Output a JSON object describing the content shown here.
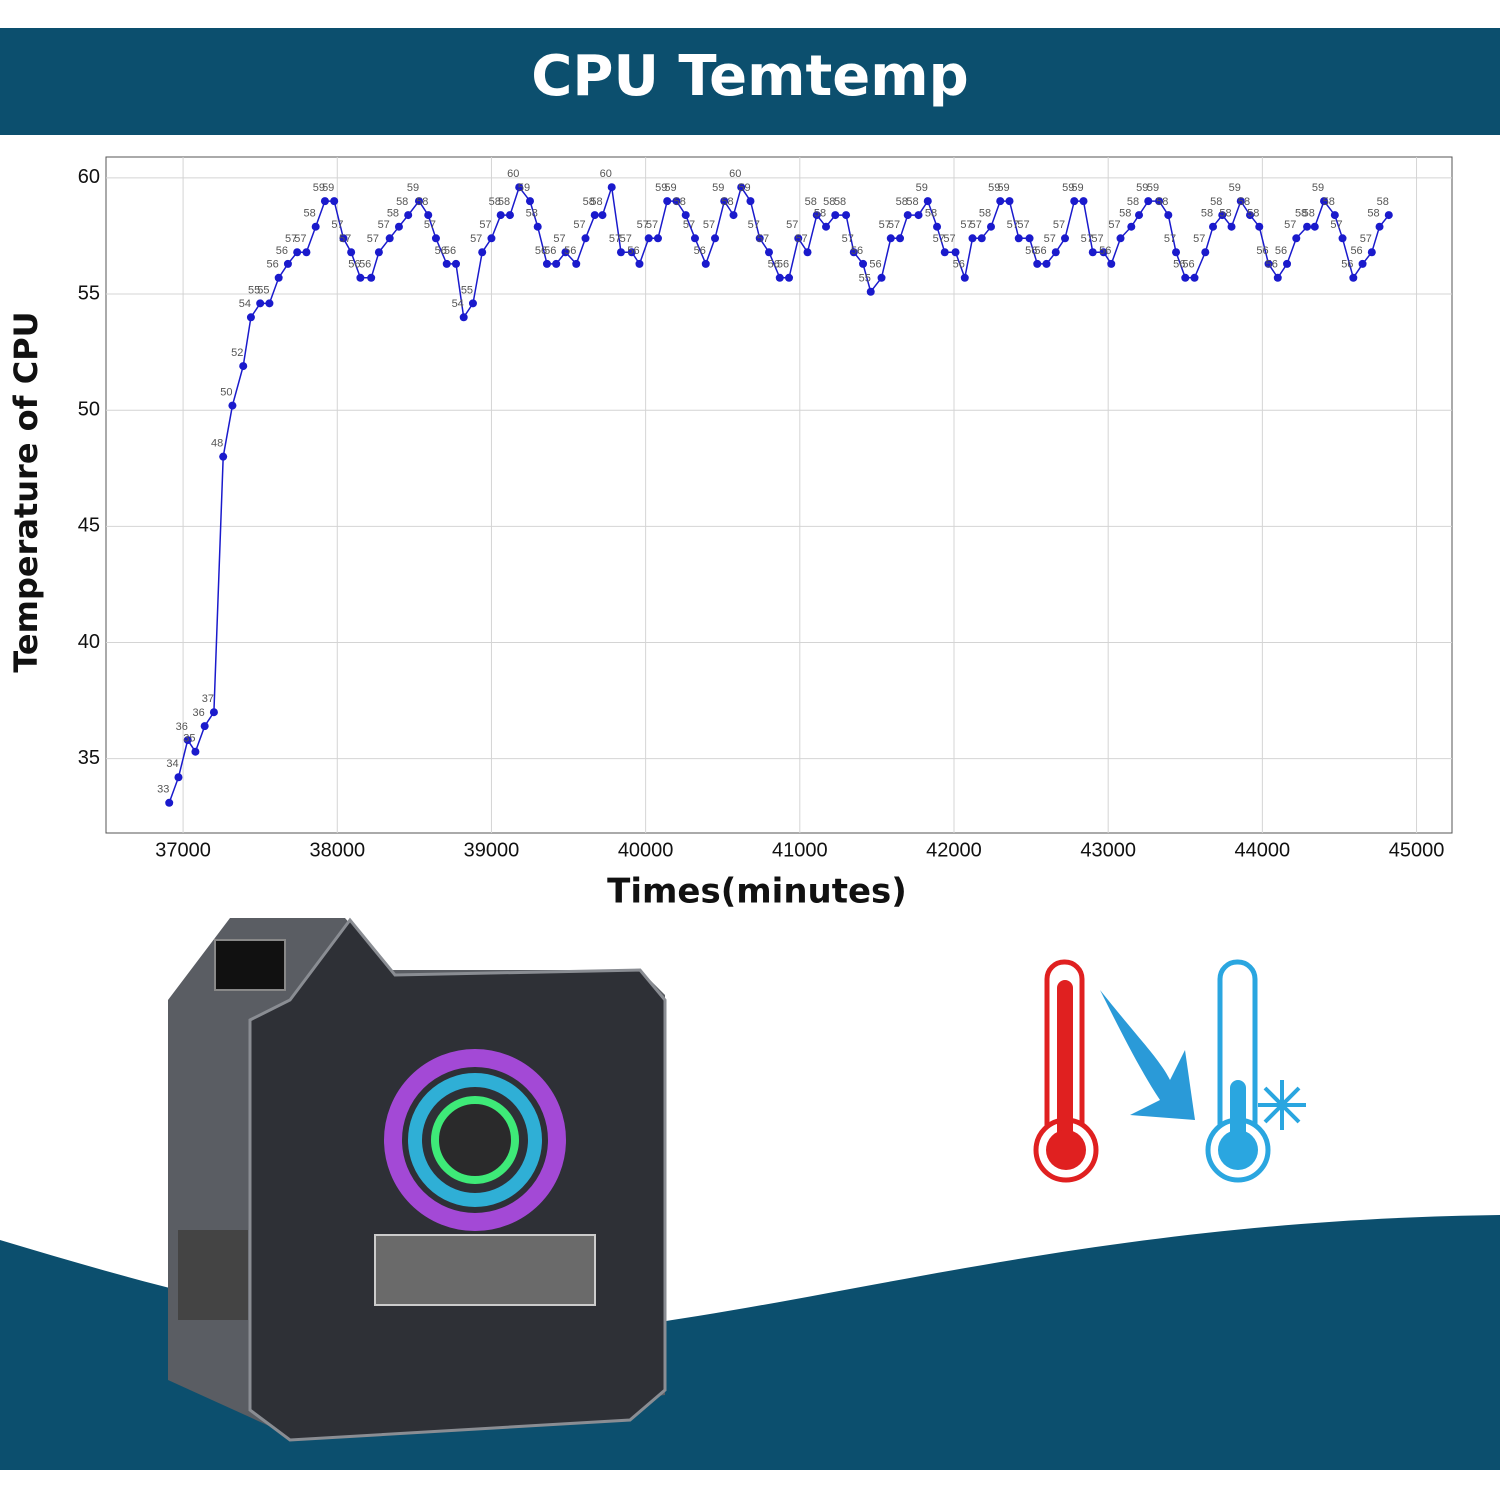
{
  "chart_data": {
    "type": "line",
    "title": "CPU Temtemp",
    "x_label": "Times(minutes)",
    "y_label": "Temperature of CPU",
    "color": "#1a1acc",
    "grid": true,
    "xlim": [
      36500,
      45230
    ],
    "ylim": [
      31.8,
      60.9
    ],
    "xticks": [
      37000,
      38000,
      39000,
      40000,
      41000,
      42000,
      43000,
      44000,
      45000
    ],
    "yticks": [
      35,
      40,
      45,
      50,
      55,
      60
    ],
    "x": [
      36910,
      36970,
      37030,
      37080,
      37140,
      37200,
      37260,
      37320,
      37390,
      37440,
      37500,
      37560,
      37620,
      37680,
      37740,
      37800,
      37860,
      37920,
      37980,
      38040,
      38090,
      38150,
      38220,
      38270,
      38340,
      38400,
      38460,
      38530,
      38590,
      38640,
      38710,
      38770,
      38820,
      38880,
      38940,
      39000,
      39060,
      39120,
      39180,
      39250,
      39300,
      39360,
      39420,
      39480,
      39550,
      39610,
      39670,
      39720,
      39780,
      39840,
      39910,
      39960,
      40020,
      40080,
      40140,
      40200,
      40260,
      40320,
      40390,
      40450,
      40510,
      40570,
      40620,
      40680,
      40740,
      40800,
      40870,
      40930,
      40990,
      41050,
      41110,
      41170,
      41230,
      41300,
      41350,
      41410,
      41460,
      41530,
      41590,
      41650,
      41700,
      41770,
      41830,
      41890,
      41940,
      42010,
      42070,
      42120,
      42180,
      42240,
      42300,
      42360,
      42420,
      42490,
      42540,
      42600,
      42660,
      42720,
      42780,
      42840,
      42900,
      42970,
      43020,
      43080,
      43150,
      43200,
      43260,
      43330,
      43390,
      43440,
      43500,
      43560,
      43630,
      43680,
      43740,
      43800,
      43860,
      43920,
      43980,
      44040,
      44100,
      44160,
      44220,
      44290,
      44340,
      44400,
      44470,
      44520,
      44590,
      44650,
      44710,
      44760,
      44820
    ],
    "values": [
      33.1,
      34.2,
      35.8,
      35.3,
      36.4,
      37.0,
      48.0,
      50.2,
      51.9,
      54.0,
      54.6,
      54.6,
      55.7,
      56.3,
      56.8,
      56.8,
      57.9,
      59.0,
      59.0,
      57.4,
      56.8,
      55.7,
      55.7,
      56.8,
      57.4,
      57.9,
      58.4,
      59.0,
      58.4,
      57.4,
      56.3,
      56.3,
      54.0,
      54.6,
      56.8,
      57.4,
      58.4,
      58.4,
      59.6,
      59.0,
      57.9,
      56.3,
      56.3,
      56.8,
      56.3,
      57.4,
      58.4,
      58.4,
      59.6,
      56.8,
      56.8,
      56.3,
      57.4,
      57.4,
      59.0,
      59.0,
      58.4,
      57.4,
      56.3,
      57.4,
      59.0,
      58.4,
      59.6,
      59.0,
      57.4,
      56.8,
      55.7,
      55.7,
      57.4,
      56.8,
      58.4,
      57.9,
      58.4,
      58.4,
      56.8,
      56.3,
      55.1,
      55.7,
      57.4,
      57.4,
      58.4,
      58.4,
      59.0,
      57.9,
      56.8,
      56.8,
      55.7,
      57.4,
      57.4,
      57.9,
      59.0,
      59.0,
      57.4,
      57.4,
      56.3,
      56.3,
      56.8,
      57.4,
      59.0,
      59.0,
      56.8,
      56.8,
      56.3,
      57.4,
      57.9,
      58.4,
      59.0,
      59.0,
      58.4,
      56.8,
      55.7,
      55.7,
      56.8,
      57.9,
      58.4,
      57.9,
      59.0,
      58.4,
      57.9,
      56.3,
      55.7,
      56.3,
      57.4,
      57.9,
      57.9,
      59.0,
      58.4,
      57.4,
      55.7,
      56.3,
      56.8,
      57.9,
      58.4
    ],
    "value_labels": [
      "33",
      "34",
      "36",
      "35",
      "36",
      "37",
      "48",
      "50",
      "52",
      "54",
      "55",
      "55",
      "56",
      "56",
      "57",
      "57",
      "58",
      "59",
      "59",
      "57",
      "57",
      "56",
      "56",
      "57",
      "57",
      "58",
      "58",
      "59",
      "58",
      "57",
      "56",
      "56",
      "54",
      "55",
      "57",
      "57",
      "58",
      "58",
      "60",
      "59",
      "58",
      "56",
      "56",
      "57",
      "56",
      "57",
      "58",
      "58",
      "60",
      "57",
      "57",
      "56",
      "57",
      "57",
      "59",
      "59",
      "58",
      "57",
      "56",
      "57",
      "59",
      "58",
      "60",
      "59",
      "57",
      "57",
      "56",
      "56",
      "57",
      "57",
      "58",
      "58",
      "58",
      "58",
      "57",
      "56",
      "55",
      "56",
      "57",
      "57",
      "58",
      "58",
      "59",
      "58",
      "57",
      "57",
      "56",
      "57",
      "57",
      "58",
      "59",
      "59",
      "57",
      "57",
      "56",
      "56",
      "57",
      "57",
      "59",
      "59",
      "57",
      "57",
      "56",
      "57",
      "58",
      "58",
      "59",
      "59",
      "58",
      "57",
      "56",
      "56",
      "57",
      "58",
      "58",
      "58",
      "59",
      "58",
      "58",
      "56",
      "56",
      "56",
      "57",
      "58",
      "58",
      "59",
      "58",
      "57",
      "56",
      "56",
      "57",
      "58",
      "58"
    ]
  }
}
